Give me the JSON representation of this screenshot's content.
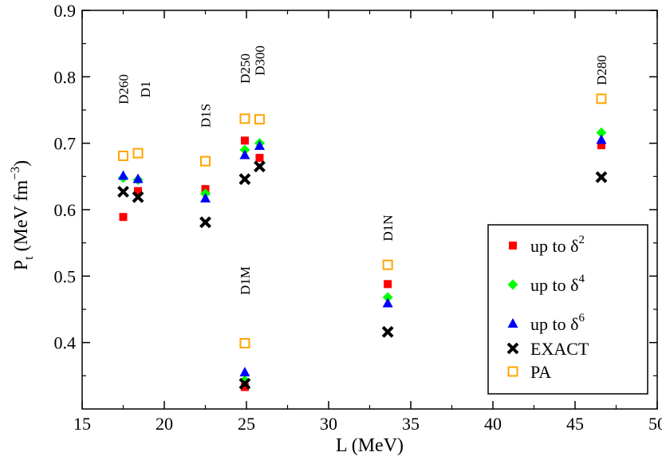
{
  "chart_data": {
    "type": "scatter",
    "xlabel": "L (MeV)",
    "ylabel": {
      "base": "P",
      "sub": "t",
      "rest": " (MeV fm",
      "sup": "−3",
      "close": ")"
    },
    "xlim": [
      15,
      50
    ],
    "ylim": [
      0.3,
      0.9
    ],
    "xticks": [
      15,
      20,
      25,
      30,
      35,
      40,
      45,
      50
    ],
    "yticks": [
      0.4,
      0.5,
      0.6,
      0.7,
      0.8,
      0.9
    ],
    "xtick_labels": [
      "15",
      "20",
      "25",
      "30",
      "35",
      "40",
      "45",
      "50"
    ],
    "ytick_labels": [
      "0.4",
      "0.5",
      "0.6",
      "0.7",
      "0.8",
      "0.9"
    ],
    "grid": false,
    "legend_position": "bottom-right",
    "series": [
      {
        "name": "up to δ",
        "sup": "2",
        "marker": "square-filled",
        "color": "#ff0000",
        "points": [
          [
            17.5,
            0.589
          ],
          [
            18.4,
            0.628
          ],
          [
            22.5,
            0.631
          ],
          [
            24.9,
            0.704
          ],
          [
            25.8,
            0.678
          ],
          [
            24.9,
            0.333
          ],
          [
            33.6,
            0.488
          ],
          [
            46.6,
            0.697
          ]
        ]
      },
      {
        "name": "up to δ",
        "sup": "4",
        "marker": "diamond",
        "color": "#00ff00",
        "points": [
          [
            17.5,
            0.648
          ],
          [
            18.4,
            0.645
          ],
          [
            22.5,
            0.624
          ],
          [
            24.9,
            0.69
          ],
          [
            25.8,
            0.7
          ],
          [
            24.9,
            0.343
          ],
          [
            33.6,
            0.468
          ],
          [
            46.6,
            0.716
          ]
        ]
      },
      {
        "name": "up to δ",
        "sup": "6",
        "marker": "triangle-up",
        "color": "#0000ff",
        "points": [
          [
            17.5,
            0.651
          ],
          [
            18.4,
            0.646
          ],
          [
            22.5,
            0.617
          ],
          [
            24.9,
            0.682
          ],
          [
            25.8,
            0.696
          ],
          [
            24.9,
            0.355
          ],
          [
            33.6,
            0.459
          ],
          [
            46.6,
            0.705
          ]
        ]
      },
      {
        "name": "EXACT",
        "sup": "",
        "marker": "x-cross",
        "color": "#000000",
        "points": [
          [
            17.5,
            0.627
          ],
          [
            18.4,
            0.619
          ],
          [
            22.5,
            0.581
          ],
          [
            24.9,
            0.646
          ],
          [
            25.8,
            0.665
          ],
          [
            24.9,
            0.338
          ],
          [
            33.6,
            0.416
          ],
          [
            46.6,
            0.649
          ]
        ]
      },
      {
        "name": "PA",
        "sup": "",
        "marker": "square-open",
        "color": "#ffa500",
        "points": [
          [
            17.5,
            0.681
          ],
          [
            18.4,
            0.685
          ],
          [
            22.5,
            0.673
          ],
          [
            24.9,
            0.737
          ],
          [
            25.8,
            0.736
          ],
          [
            24.9,
            0.399
          ],
          [
            33.6,
            0.517
          ],
          [
            46.6,
            0.767
          ]
        ]
      }
    ],
    "annotations": [
      {
        "text": "D260",
        "x": 17.5
      },
      {
        "text": "D1",
        "x": 18.4
      },
      {
        "text": "D1S",
        "x": 22.5
      },
      {
        "text": "D250",
        "x": 24.9
      },
      {
        "text": "D300",
        "x": 25.8
      },
      {
        "text": "D1M",
        "x": 24.9
      },
      {
        "text": "D1N",
        "x": 33.6
      },
      {
        "text": "D280",
        "x": 46.6
      }
    ]
  }
}
